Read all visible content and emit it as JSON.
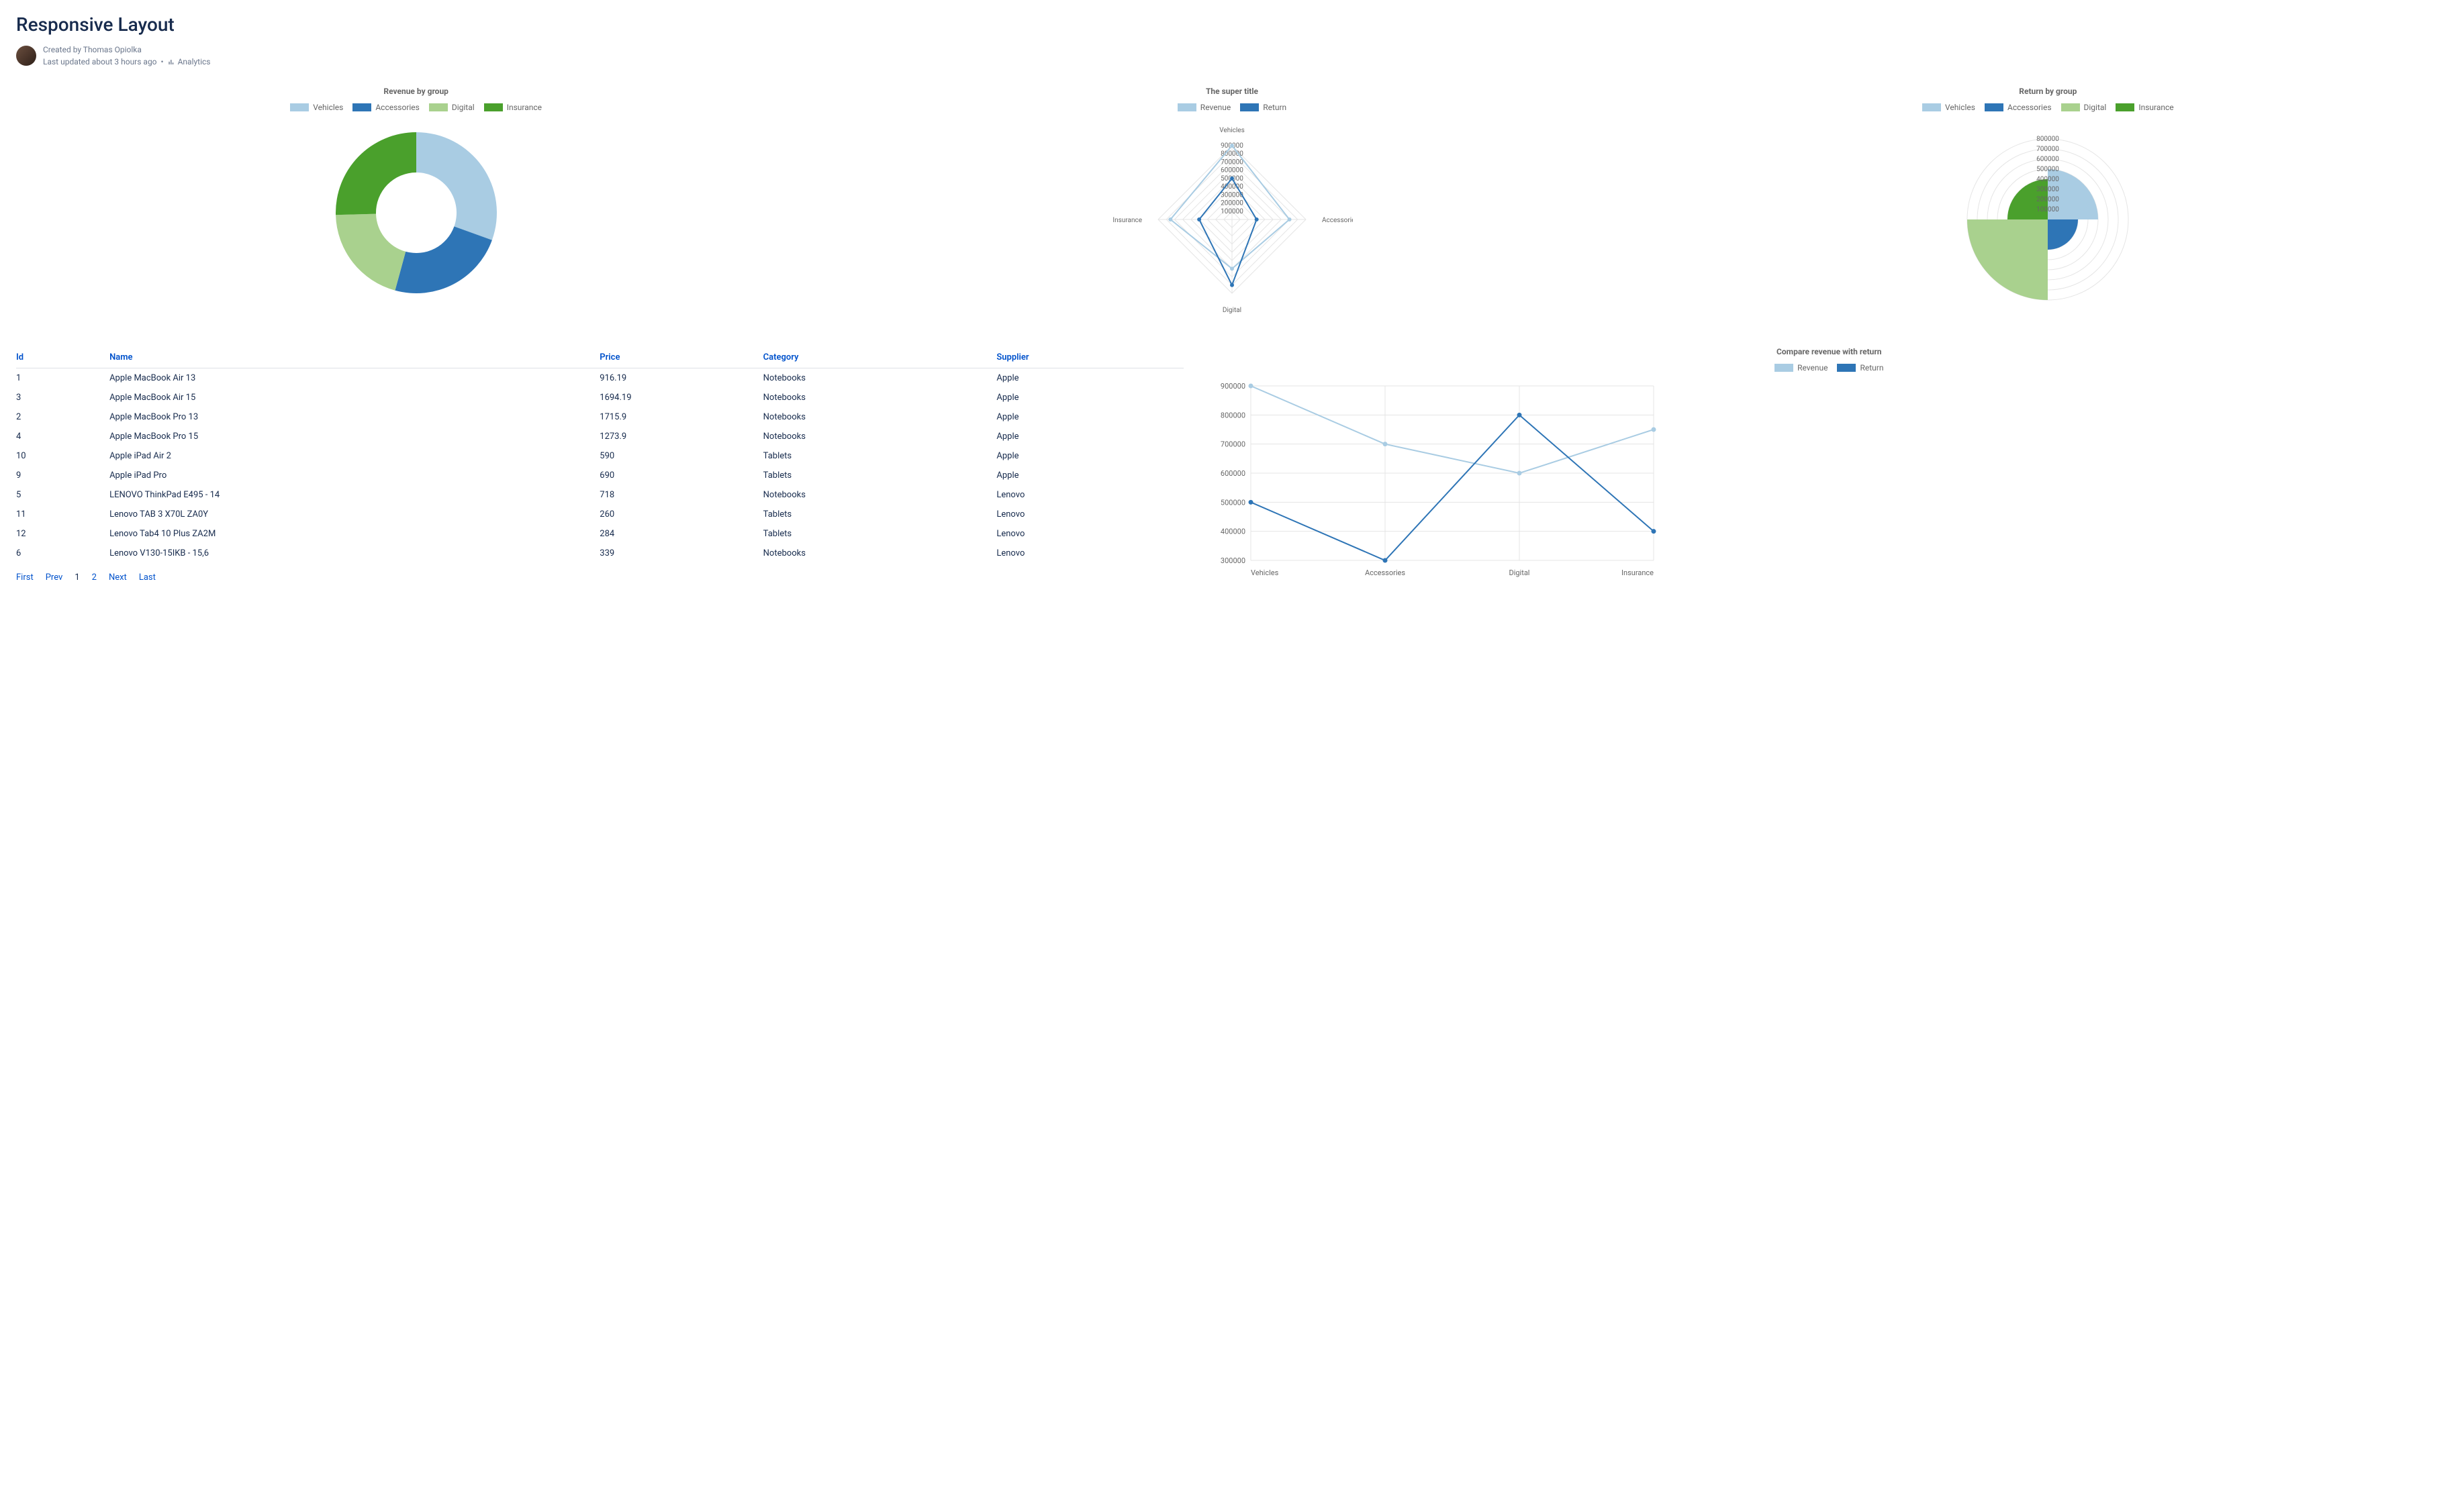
{
  "page": {
    "title": "Responsive Layout",
    "created_by": "Created by Thomas Opiolka",
    "updated": "Last updated about 3 hours ago",
    "analytics_label": "Analytics"
  },
  "palette": {
    "light_blue": "#a9cce3",
    "blue": "#2e75b6",
    "light_green": "#a9d18e",
    "green": "#4aa02c",
    "axis_text": "#666666",
    "grid": "#e5e5e5",
    "header_link": "#0052cc",
    "text": "#172b4d"
  },
  "legend_categories": [
    {
      "label": "Vehicles",
      "color": "#a9cce3"
    },
    {
      "label": "Accessories",
      "color": "#2e75b6"
    },
    {
      "label": "Digital",
      "color": "#a9d18e"
    },
    {
      "label": "Insurance",
      "color": "#4aa02c"
    }
  ],
  "legend_series": [
    {
      "label": "Revenue",
      "color": "#a9cce3"
    },
    {
      "label": "Return",
      "color": "#2e75b6"
    }
  ],
  "donut": {
    "type": "donut",
    "title": "Revenue by group",
    "outer_r": 120,
    "inner_r": 60,
    "slices": [
      {
        "label": "Vehicles",
        "value": 900000,
        "color": "#a9cce3"
      },
      {
        "label": "Accessories",
        "value": 700000,
        "color": "#2e75b6"
      },
      {
        "label": "Digital",
        "value": 600000,
        "color": "#a9d18e"
      },
      {
        "label": "Insurance",
        "value": 750000,
        "color": "#4aa02c"
      }
    ],
    "title_fontsize": 12,
    "background": "#ffffff"
  },
  "radar": {
    "type": "radar",
    "title": "The super title",
    "axes": [
      "Vehicles",
      "Accessories",
      "Digital",
      "Insurance"
    ],
    "max": 900000,
    "ticks": [
      100000,
      200000,
      300000,
      400000,
      500000,
      600000,
      700000,
      800000,
      900000
    ],
    "series": [
      {
        "name": "Revenue",
        "color": "#a9cce3",
        "values": [
          900000,
          700000,
          600000,
          750000
        ],
        "points": true
      },
      {
        "name": "Return",
        "color": "#2e75b6",
        "values": [
          500000,
          300000,
          800000,
          400000
        ],
        "points": true
      }
    ],
    "grid_color": "#e5e5e5",
    "label_fontsize": 10,
    "line_width": 2
  },
  "polar": {
    "type": "polar-bar",
    "title": "Return by group",
    "ticks": [
      100000,
      200000,
      300000,
      400000,
      500000,
      600000,
      700000,
      800000
    ],
    "max": 800000,
    "bars": [
      {
        "label": "Vehicles",
        "value": 500000,
        "color": "#a9cce3",
        "start_deg": 0,
        "end_deg": 90
      },
      {
        "label": "Accessories",
        "value": 300000,
        "color": "#2e75b6",
        "start_deg": 90,
        "end_deg": 180
      },
      {
        "label": "Digital",
        "value": 800000,
        "color": "#a9d18e",
        "start_deg": 180,
        "end_deg": 270
      },
      {
        "label": "Insurance",
        "value": 400000,
        "color": "#4aa02c",
        "start_deg": 270,
        "end_deg": 360
      }
    ],
    "grid_color": "#e5e5e5",
    "label_fontsize": 10
  },
  "table": {
    "columns": [
      "Id",
      "Name",
      "Price",
      "Category",
      "Supplier"
    ],
    "col_widths": [
      "8%",
      "42%",
      "14%",
      "20%",
      "16%"
    ],
    "rows": [
      [
        "1",
        "Apple MacBook Air 13",
        "916.19",
        "Notebooks",
        "Apple"
      ],
      [
        "3",
        "Apple MacBook Air 15",
        "1694.19",
        "Notebooks",
        "Apple"
      ],
      [
        "2",
        "Apple MacBook Pro 13",
        "1715.9",
        "Notebooks",
        "Apple"
      ],
      [
        "4",
        "Apple MacBook Pro 15",
        "1273.9",
        "Notebooks",
        "Apple"
      ],
      [
        "10",
        "Apple iPad Air 2",
        "590",
        "Tablets",
        "Apple"
      ],
      [
        "9",
        "Apple iPad Pro",
        "690",
        "Tablets",
        "Apple"
      ],
      [
        "5",
        "LENOVO ThinkPad E495 - 14",
        "718",
        "Notebooks",
        "Lenovo"
      ],
      [
        "11",
        "Lenovo TAB 3 X70L ZA0Y",
        "260",
        "Tablets",
        "Lenovo"
      ],
      [
        "12",
        "Lenovo Tab4 10 Plus ZA2M",
        "284",
        "Tablets",
        "Lenovo"
      ],
      [
        "6",
        "Lenovo V130-15IKB - 15,6",
        "339",
        "Notebooks",
        "Lenovo"
      ]
    ],
    "pagination": [
      "First",
      "Prev",
      "1",
      "2",
      "Next",
      "Last"
    ],
    "current_page": "1"
  },
  "line": {
    "type": "line",
    "title": "Compare revenue with return",
    "categories": [
      "Vehicles",
      "Accessories",
      "Digital",
      "Insurance"
    ],
    "ylim": [
      300000,
      900000
    ],
    "ytick_step": 100000,
    "series": [
      {
        "name": "Revenue",
        "color": "#a9cce3",
        "values": [
          900000,
          700000,
          600000,
          750000
        ]
      },
      {
        "name": "Return",
        "color": "#2e75b6",
        "values": [
          500000,
          300000,
          800000,
          400000
        ]
      }
    ],
    "grid_color": "#e5e5e5",
    "label_fontsize": 11,
    "line_width": 2,
    "marker_radius": 3.5,
    "background": "#ffffff"
  }
}
